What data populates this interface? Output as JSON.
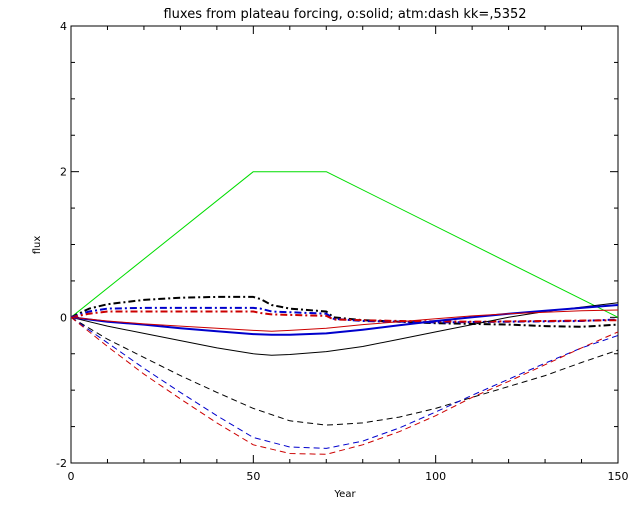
{
  "chart_data": {
    "type": "line",
    "title": "fluxes from plateau forcing, o:solid; atm:dash kk=,5352",
    "xlabel": "Year",
    "ylabel": "flux",
    "xlim": [
      0,
      150
    ],
    "ylim": [
      -2,
      4
    ],
    "x_ticks": [
      "0",
      "50",
      "100",
      "150"
    ],
    "y_ticks": [
      "-2",
      "0",
      "2",
      "4"
    ],
    "grid": false,
    "legend": "none",
    "background": "#ffffff",
    "series": [
      {
        "color": "#00dd00",
        "style": "solid",
        "width": 1,
        "points": [
          [
            0,
            0
          ],
          [
            50,
            2
          ],
          [
            70,
            2
          ],
          [
            150,
            0
          ]
        ]
      },
      {
        "color": "#000000",
        "style": "dashdot",
        "width": 2,
        "points": [
          [
            0,
            0
          ],
          [
            5,
            0.12
          ],
          [
            10,
            0.18
          ],
          [
            20,
            0.24
          ],
          [
            30,
            0.27
          ],
          [
            40,
            0.28
          ],
          [
            50,
            0.28
          ],
          [
            52,
            0.25
          ],
          [
            55,
            0.17
          ],
          [
            60,
            0.12
          ],
          [
            70,
            0.08
          ],
          [
            72,
            0
          ],
          [
            80,
            -0.04
          ],
          [
            90,
            -0.06
          ],
          [
            100,
            -0.08
          ],
          [
            110,
            -0.09
          ],
          [
            120,
            -0.1
          ],
          [
            130,
            -0.12
          ],
          [
            140,
            -0.13
          ],
          [
            150,
            -0.1
          ]
        ]
      },
      {
        "color": "#0000cc",
        "style": "dashdot",
        "width": 2,
        "points": [
          [
            0,
            0
          ],
          [
            5,
            0.08
          ],
          [
            10,
            0.12
          ],
          [
            20,
            0.13
          ],
          [
            30,
            0.13
          ],
          [
            40,
            0.13
          ],
          [
            50,
            0.13
          ],
          [
            52,
            0.12
          ],
          [
            55,
            0.08
          ],
          [
            70,
            0.05
          ],
          [
            72,
            -0.02
          ],
          [
            80,
            -0.05
          ],
          [
            100,
            -0.07
          ],
          [
            120,
            -0.06
          ],
          [
            140,
            -0.05
          ],
          [
            150,
            -0.03
          ]
        ]
      },
      {
        "color": "#cc0000",
        "style": "dashdot",
        "width": 2,
        "points": [
          [
            0,
            0
          ],
          [
            5,
            0.05
          ],
          [
            10,
            0.08
          ],
          [
            20,
            0.08
          ],
          [
            40,
            0.08
          ],
          [
            50,
            0.08
          ],
          [
            52,
            0.06
          ],
          [
            55,
            0.04
          ],
          [
            70,
            0.02
          ],
          [
            72,
            -0.03
          ],
          [
            90,
            -0.05
          ],
          [
            110,
            -0.06
          ],
          [
            130,
            -0.05
          ],
          [
            150,
            -0.04
          ]
        ]
      },
      {
        "color": "#000000",
        "style": "solid",
        "width": 1,
        "points": [
          [
            0,
            0
          ],
          [
            10,
            -0.12
          ],
          [
            20,
            -0.22
          ],
          [
            30,
            -0.32
          ],
          [
            40,
            -0.42
          ],
          [
            50,
            -0.5
          ],
          [
            55,
            -0.52
          ],
          [
            60,
            -0.51
          ],
          [
            70,
            -0.47
          ],
          [
            80,
            -0.4
          ],
          [
            90,
            -0.3
          ],
          [
            100,
            -0.2
          ],
          [
            110,
            -0.1
          ],
          [
            120,
            0
          ],
          [
            130,
            0.08
          ],
          [
            140,
            0.14
          ],
          [
            150,
            0.2
          ]
        ]
      },
      {
        "color": "#0000cc",
        "style": "solid",
        "width": 2,
        "points": [
          [
            0,
            0
          ],
          [
            10,
            -0.06
          ],
          [
            20,
            -0.1
          ],
          [
            30,
            -0.15
          ],
          [
            40,
            -0.19
          ],
          [
            50,
            -0.23
          ],
          [
            55,
            -0.24
          ],
          [
            60,
            -0.24
          ],
          [
            70,
            -0.22
          ],
          [
            80,
            -0.17
          ],
          [
            90,
            -0.11
          ],
          [
            100,
            -0.05
          ],
          [
            110,
            0
          ],
          [
            120,
            0.05
          ],
          [
            130,
            0.09
          ],
          [
            140,
            0.13
          ],
          [
            150,
            0.17
          ]
        ]
      },
      {
        "color": "#cc0000",
        "style": "solid",
        "width": 1,
        "points": [
          [
            0,
            0
          ],
          [
            10,
            -0.05
          ],
          [
            20,
            -0.09
          ],
          [
            30,
            -0.12
          ],
          [
            40,
            -0.15
          ],
          [
            50,
            -0.18
          ],
          [
            55,
            -0.19
          ],
          [
            60,
            -0.18
          ],
          [
            70,
            -0.15
          ],
          [
            80,
            -0.1
          ],
          [
            90,
            -0.06
          ],
          [
            100,
            -0.02
          ],
          [
            110,
            0.02
          ],
          [
            120,
            0.05
          ],
          [
            130,
            0.07
          ],
          [
            140,
            0.09
          ],
          [
            150,
            0.1
          ]
        ]
      },
      {
        "color": "#000000",
        "style": "dashed",
        "width": 1,
        "points": [
          [
            0,
            0
          ],
          [
            10,
            -0.3
          ],
          [
            20,
            -0.55
          ],
          [
            30,
            -0.8
          ],
          [
            40,
            -1.03
          ],
          [
            50,
            -1.25
          ],
          [
            60,
            -1.42
          ],
          [
            70,
            -1.48
          ],
          [
            80,
            -1.45
          ],
          [
            90,
            -1.37
          ],
          [
            100,
            -1.25
          ],
          [
            110,
            -1.1
          ],
          [
            120,
            -0.95
          ],
          [
            130,
            -0.8
          ],
          [
            140,
            -0.62
          ],
          [
            150,
            -0.45
          ]
        ]
      },
      {
        "color": "#0000cc",
        "style": "dashed",
        "width": 1,
        "points": [
          [
            0,
            0
          ],
          [
            10,
            -0.35
          ],
          [
            20,
            -0.7
          ],
          [
            30,
            -1.03
          ],
          [
            40,
            -1.35
          ],
          [
            50,
            -1.65
          ],
          [
            60,
            -1.78
          ],
          [
            70,
            -1.8
          ],
          [
            80,
            -1.7
          ],
          [
            90,
            -1.52
          ],
          [
            100,
            -1.3
          ],
          [
            110,
            -1.07
          ],
          [
            120,
            -0.85
          ],
          [
            130,
            -0.63
          ],
          [
            140,
            -0.42
          ],
          [
            150,
            -0.25
          ]
        ]
      },
      {
        "color": "#cc0000",
        "style": "dashed",
        "width": 1,
        "points": [
          [
            0,
            0
          ],
          [
            10,
            -0.4
          ],
          [
            20,
            -0.78
          ],
          [
            30,
            -1.12
          ],
          [
            40,
            -1.45
          ],
          [
            50,
            -1.75
          ],
          [
            60,
            -1.87
          ],
          [
            70,
            -1.88
          ],
          [
            80,
            -1.75
          ],
          [
            90,
            -1.57
          ],
          [
            100,
            -1.35
          ],
          [
            110,
            -1.1
          ],
          [
            120,
            -0.88
          ],
          [
            130,
            -0.65
          ],
          [
            140,
            -0.42
          ],
          [
            150,
            -0.2
          ]
        ]
      }
    ]
  }
}
